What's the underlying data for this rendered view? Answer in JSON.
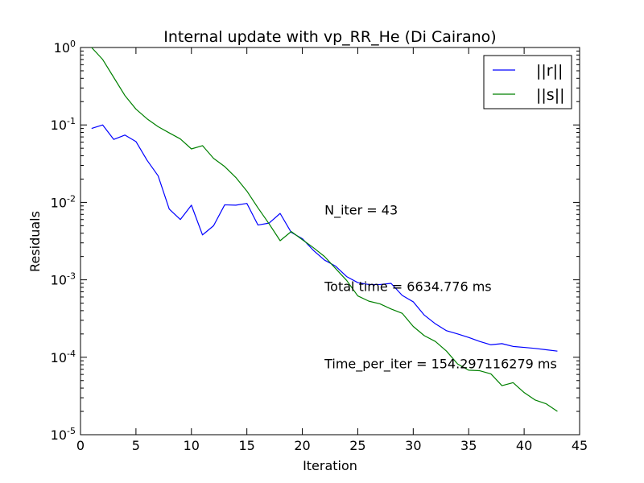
{
  "chart_data": {
    "type": "line",
    "title": "Internal update with vp_RR_He (Di Cairano)",
    "xlabel": "Iteration",
    "ylabel": "Residuals",
    "xlim": [
      0,
      45
    ],
    "ylim_exp": [
      -5,
      0
    ],
    "yscale": "log",
    "x_ticks": [
      0,
      5,
      10,
      15,
      20,
      25,
      30,
      35,
      40,
      45
    ],
    "x_tick_labels": [
      "0",
      "5",
      "10",
      "15",
      "20",
      "25",
      "30",
      "35",
      "40",
      "45"
    ],
    "y_ticks": [
      {
        "base": "10",
        "exp": "0",
        "value": 0
      },
      {
        "base": "10",
        "exp": "-1",
        "value": -1
      },
      {
        "base": "10",
        "exp": "-2",
        "value": -2
      },
      {
        "base": "10",
        "exp": "-3",
        "value": -3
      },
      {
        "base": "10",
        "exp": "-4",
        "value": -4
      },
      {
        "base": "10",
        "exp": "-5",
        "value": -5
      }
    ],
    "legend_position": "top-right",
    "series": [
      {
        "name": "||r||",
        "color": "#0000ff",
        "x": [
          1,
          2,
          3,
          4,
          5,
          6,
          7,
          8,
          9,
          10,
          11,
          12,
          13,
          14,
          15,
          16,
          17,
          18,
          19,
          20,
          21,
          22,
          23,
          24,
          25,
          26,
          27,
          28,
          29,
          30,
          31,
          32,
          33,
          34,
          35,
          36,
          37,
          38,
          39,
          40,
          41,
          42,
          43
        ],
        "y": [
          0.09,
          0.1,
          0.065,
          0.074,
          0.061,
          0.035,
          0.022,
          0.0082,
          0.006,
          0.0092,
          0.0038,
          0.005,
          0.0093,
          0.0092,
          0.0097,
          0.0051,
          0.0054,
          0.0072,
          0.0041,
          0.0034,
          0.0024,
          0.0018,
          0.0015,
          0.0011,
          0.00092,
          0.00087,
          0.00087,
          0.0009,
          0.00063,
          0.00052,
          0.00035,
          0.00027,
          0.00022,
          0.0002,
          0.00018,
          0.00016,
          0.000145,
          0.00015,
          0.000138,
          0.000134,
          0.00013,
          0.000125,
          0.00012
        ]
      },
      {
        "name": "||s||",
        "color": "#008000",
        "x": [
          1,
          2,
          3,
          4,
          5,
          6,
          7,
          8,
          9,
          10,
          11,
          12,
          13,
          14,
          15,
          16,
          17,
          18,
          19,
          20,
          21,
          22,
          23,
          24,
          25,
          26,
          27,
          28,
          29,
          30,
          31,
          32,
          33,
          34,
          35,
          36,
          37,
          38,
          39,
          40,
          41,
          42,
          43
        ],
        "y": [
          1.0,
          0.7,
          0.41,
          0.24,
          0.16,
          0.12,
          0.095,
          0.079,
          0.066,
          0.049,
          0.054,
          0.037,
          0.029,
          0.021,
          0.014,
          0.0085,
          0.0053,
          0.0032,
          0.0042,
          0.0033,
          0.0026,
          0.002,
          0.0014,
          0.00098,
          0.00062,
          0.00053,
          0.00049,
          0.00042,
          0.00037,
          0.00025,
          0.00019,
          0.00016,
          0.00012,
          8.2e-05,
          6.8e-05,
          6.7e-05,
          6.1e-05,
          4.3e-05,
          4.7e-05,
          3.5e-05,
          2.8e-05,
          2.5e-05,
          2e-05
        ]
      }
    ],
    "annotations": [
      {
        "x": 22,
        "y": 0.007,
        "text": "N_iter = 43"
      },
      {
        "x": 22,
        "y": 0.00072,
        "text": "Total time = 6634.776 ms"
      },
      {
        "x": 22,
        "y": 7.2e-05,
        "text": "Time_per_iter = 154.297116279 ms"
      }
    ]
  }
}
